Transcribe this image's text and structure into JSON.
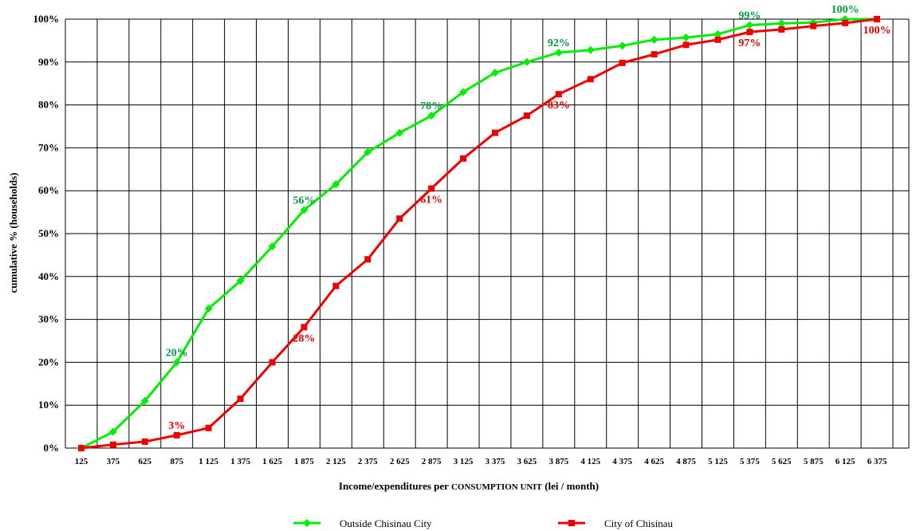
{
  "chart_data": {
    "type": "line",
    "ylabel": "cumulative % (households)",
    "xlabel_parts": [
      "Income/expenditures per ",
      "CONSUMPTION UNIT",
      " (lei / month)"
    ],
    "categories": [
      "125",
      "375",
      "625",
      "875",
      "1 125",
      "1 375",
      "1 625",
      "1 875",
      "2 125",
      "2 375",
      "2 625",
      "2 875",
      "3 125",
      "3 375",
      "3 625",
      "3 875",
      "4 125",
      "4 375",
      "4 625",
      "4 875",
      "5 125",
      "5 375",
      "5 625",
      "5 875",
      "6 125",
      "6 375"
    ],
    "ylim": [
      0,
      100
    ],
    "yticks": [
      "0%",
      "10%",
      "20%",
      "30%",
      "40%",
      "50%",
      "60%",
      "70%",
      "80%",
      "90%",
      "100%"
    ],
    "grid": true,
    "legend_position": "bottom",
    "series": [
      {
        "name": "Outside Chisinau City",
        "color": "#00ee00",
        "marker": "diamond",
        "values": [
          0,
          3.8,
          11,
          20,
          32.5,
          39,
          47,
          55.5,
          61.5,
          69,
          73.5,
          77.5,
          83,
          87.5,
          90,
          92.2,
          92.8,
          93.8,
          95.2,
          95.7,
          96.5,
          98.6,
          99,
          99.2,
          100,
          100
        ],
        "labels": [
          {
            "index": 3,
            "text": "20%",
            "pos": "above"
          },
          {
            "index": 7,
            "text": "56%",
            "pos": "above"
          },
          {
            "index": 11,
            "text": "78%",
            "pos": "above"
          },
          {
            "index": 15,
            "text": "92%",
            "pos": "above"
          },
          {
            "index": 21,
            "text": "99%",
            "pos": "above"
          },
          {
            "index": 24,
            "text": "100%",
            "pos": "above"
          }
        ]
      },
      {
        "name": "City of Chisinau",
        "color": "#ee0000",
        "marker": "square",
        "values": [
          0,
          0.8,
          1.5,
          3,
          4.7,
          11.5,
          20,
          28.2,
          37.8,
          44,
          53.5,
          60.5,
          67.5,
          73.5,
          77.5,
          82.5,
          86,
          89.8,
          91.8,
          94,
          95.2,
          97,
          97.6,
          98.4,
          99.1,
          100
        ],
        "labels": [
          {
            "index": 3,
            "text": "3%",
            "pos": "above"
          },
          {
            "index": 7,
            "text": "28%",
            "pos": "below"
          },
          {
            "index": 11,
            "text": "61%",
            "pos": "below"
          },
          {
            "index": 15,
            "text": "83%",
            "pos": "below"
          },
          {
            "index": 21,
            "text": "97%",
            "pos": "below"
          },
          {
            "index": 25,
            "text": "100%",
            "pos": "below"
          }
        ]
      }
    ]
  }
}
